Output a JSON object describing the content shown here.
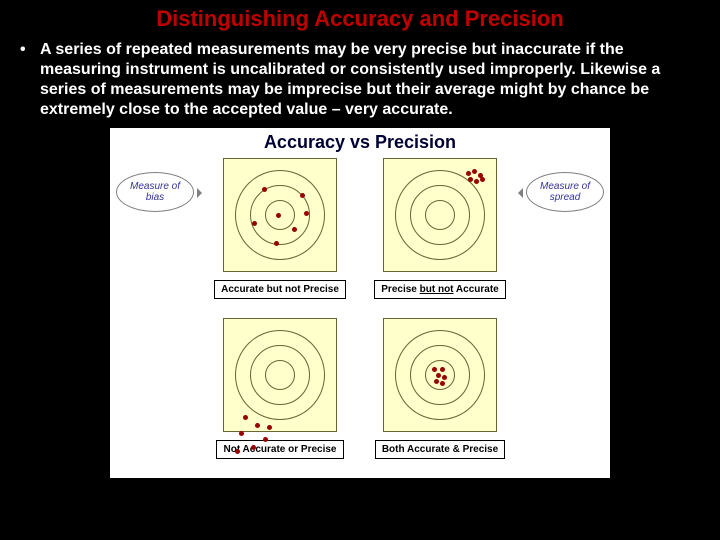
{
  "title": {
    "text": "Distinguishing Accuracy and Precision",
    "color": "#c00000",
    "fontsize": 22
  },
  "body": {
    "text": "A series of repeated measurements may be very precise but inaccurate if the measuring instrument is uncalibrated or consistently used improperly.  Likewise a series of measurements may be imprecise but their average might by chance be extremely close to the accepted value – very accurate.",
    "color": "#ffffff",
    "fontsize": 16
  },
  "figure": {
    "title": "Accuracy vs Precision",
    "title_fontsize": 18,
    "background": "#ffffff",
    "callout_left": "Measure of bias",
    "callout_right": "Measure of spread",
    "target_bg": "#ffffcc",
    "target_border": "#666633",
    "ring_sizes": [
      90,
      60,
      30
    ],
    "dot_color": "#990000",
    "dot_size": 5,
    "panels": [
      {
        "id": "accurate-not-precise",
        "caption": "Accurate but not Precise",
        "dots": [
          [
            40,
            30
          ],
          [
            78,
            36
          ],
          [
            30,
            64
          ],
          [
            54,
            56
          ],
          [
            70,
            70
          ],
          [
            52,
            84
          ],
          [
            82,
            54
          ]
        ]
      },
      {
        "id": "precise-not-accurate",
        "caption_html": "Precise <span class='underline'>but not</span> Accurate",
        "dots": [
          [
            84,
            14
          ],
          [
            90,
            12
          ],
          [
            96,
            16
          ],
          [
            86,
            20
          ],
          [
            92,
            22
          ],
          [
            98,
            20
          ]
        ]
      },
      {
        "id": "not-accurate-or-precise",
        "caption": "Not Accurate or Precise",
        "dots_outside": true,
        "dots": [
          [
            22,
            98
          ],
          [
            34,
            106
          ],
          [
            18,
            114
          ],
          [
            42,
            120
          ],
          [
            30,
            128
          ],
          [
            14,
            132
          ],
          [
            46,
            108
          ]
        ]
      },
      {
        "id": "both-accurate-precise",
        "caption": "Both Accurate & Precise",
        "dots": [
          [
            50,
            50
          ],
          [
            58,
            50
          ],
          [
            54,
            56
          ],
          [
            60,
            58
          ],
          [
            52,
            62
          ],
          [
            58,
            64
          ]
        ]
      }
    ]
  }
}
